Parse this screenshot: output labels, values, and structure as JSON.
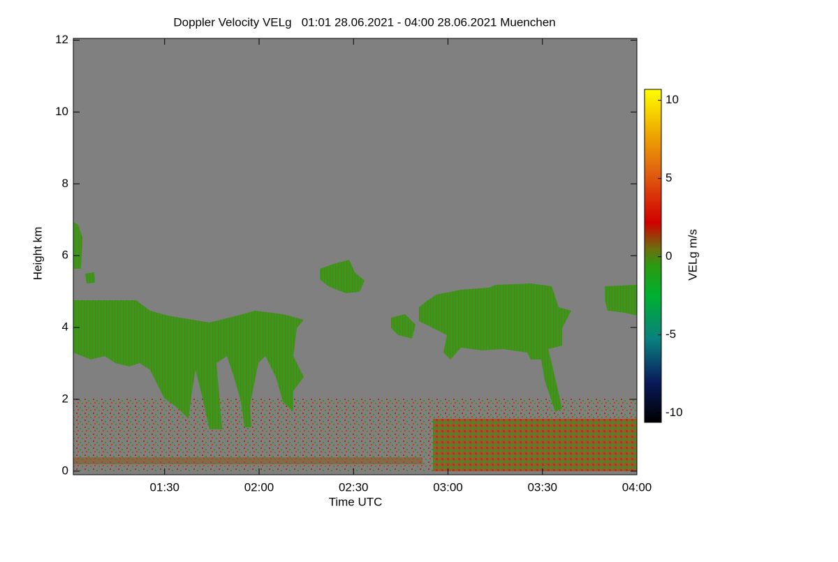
{
  "chart_data": {
    "type": "heatmap",
    "title": "Doppler Velocity VELg   01:01 28.06.2021 - 04:00 28.06.2021 Muenchen",
    "x_label": "Time UTC",
    "y_label": "Height km",
    "xlim": [
      61,
      240
    ],
    "xticks": [
      {
        "value": 90,
        "label": "01:30"
      },
      {
        "value": 120,
        "label": "02:00"
      },
      {
        "value": 150,
        "label": "02:30"
      },
      {
        "value": 180,
        "label": "03:00"
      },
      {
        "value": 210,
        "label": "03:30"
      },
      {
        "value": 240,
        "label": "04:00"
      }
    ],
    "ylim": [
      -0.1,
      12.05
    ],
    "yticks": [
      0,
      2,
      4,
      6,
      8,
      10,
      12
    ],
    "colorbar_label": "VELg m/s",
    "colorbar_lim": [
      -10.6,
      10.7
    ],
    "colorbar_ticks": [
      -10,
      -5,
      0,
      5,
      10
    ]
  }
}
